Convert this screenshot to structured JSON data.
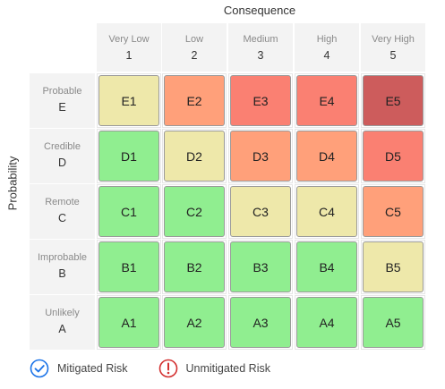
{
  "x_axis_title": "Consequence",
  "y_axis_title": "Probability",
  "columns": [
    {
      "label": "Very Low",
      "code": "1"
    },
    {
      "label": "Low",
      "code": "2"
    },
    {
      "label": "Medium",
      "code": "3"
    },
    {
      "label": "High",
      "code": "4"
    },
    {
      "label": "Very High",
      "code": "5"
    }
  ],
  "rows": [
    {
      "label": "Probable",
      "code": "E",
      "cells": [
        "E1",
        "E2",
        "E3",
        "E4",
        "E5"
      ],
      "levels": [
        "yellow",
        "orange",
        "red",
        "red",
        "darkred"
      ]
    },
    {
      "label": "Credible",
      "code": "D",
      "cells": [
        "D1",
        "D2",
        "D3",
        "D4",
        "D5"
      ],
      "levels": [
        "green",
        "yellow",
        "orange",
        "orange",
        "red"
      ]
    },
    {
      "label": "Remote",
      "code": "C",
      "cells": [
        "C1",
        "C2",
        "C3",
        "C4",
        "C5"
      ],
      "levels": [
        "green",
        "green",
        "yellow",
        "yellow",
        "orange"
      ]
    },
    {
      "label": "Improbable",
      "code": "B",
      "cells": [
        "B1",
        "B2",
        "B3",
        "B4",
        "B5"
      ],
      "levels": [
        "green",
        "green",
        "green",
        "green",
        "yellow"
      ]
    },
    {
      "label": "Unlikely",
      "code": "A",
      "cells": [
        "A1",
        "A2",
        "A3",
        "A4",
        "A5"
      ],
      "levels": [
        "green",
        "green",
        "green",
        "green",
        "green"
      ]
    }
  ],
  "colors": {
    "green": "#90ee90",
    "yellow": "#eee8aa",
    "orange": "#ffa07a",
    "red": "#fa8072",
    "darkred": "#cd5c5c"
  },
  "legend": {
    "mitigated": {
      "label": "Mitigated Risk",
      "icon": "check-circle-icon",
      "color": "#1a73e8"
    },
    "unmitigated": {
      "label": "Unmitigated Risk",
      "icon": "exclamation-circle-icon",
      "color": "#d32f2f"
    }
  }
}
